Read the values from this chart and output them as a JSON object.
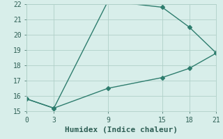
{
  "line1_x": [
    0,
    3,
    9,
    15,
    18,
    21
  ],
  "line1_y": [
    15.8,
    15.2,
    22.2,
    21.8,
    20.5,
    18.8
  ],
  "line2_x": [
    0,
    3,
    9,
    15,
    18,
    21
  ],
  "line2_y": [
    15.8,
    15.2,
    16.5,
    17.2,
    17.8,
    18.8
  ],
  "line_color": "#2e7d6e",
  "marker": "D",
  "markersize": 3,
  "linewidth": 1.0,
  "xlabel": "Humidex (Indice chaleur)",
  "xlim": [
    0,
    21
  ],
  "ylim": [
    15,
    22
  ],
  "xticks": [
    0,
    3,
    9,
    15,
    18,
    21
  ],
  "yticks": [
    15,
    16,
    17,
    18,
    19,
    20,
    21,
    22
  ],
  "bg_color": "#d8eeea",
  "grid_color": "#b0d0c8",
  "font_color": "#2e5f55",
  "xlabel_fontsize": 8,
  "tick_fontsize": 7
}
